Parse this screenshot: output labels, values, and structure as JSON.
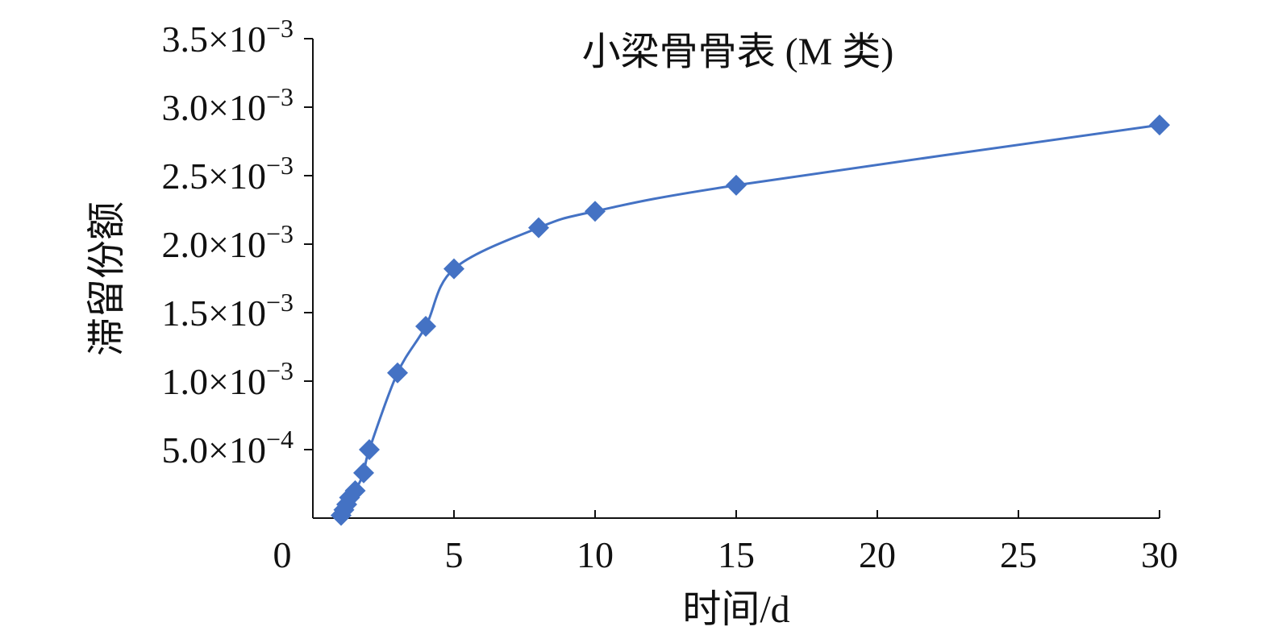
{
  "chart_data": {
    "type": "scatter",
    "title": "小梁骨骨表 (M 类)",
    "xlabel": "时间/d",
    "ylabel": "滞留份额",
    "xlim": [
      0,
      30
    ],
    "ylim": [
      0,
      0.0035
    ],
    "x_ticks": [
      {
        "value": 0,
        "label": "0"
      },
      {
        "value": 5,
        "label": "5"
      },
      {
        "value": 10,
        "label": "10"
      },
      {
        "value": 15,
        "label": "15"
      },
      {
        "value": 20,
        "label": "20"
      },
      {
        "value": 25,
        "label": "25"
      },
      {
        "value": 30,
        "label": "30"
      }
    ],
    "y_ticks": [
      {
        "value": 0.0005,
        "mantissa": "5.0",
        "exponent": "−4"
      },
      {
        "value": 0.001,
        "mantissa": "1.0",
        "exponent": "−3"
      },
      {
        "value": 0.0015,
        "mantissa": "1.5",
        "exponent": "−3"
      },
      {
        "value": 0.002,
        "mantissa": "2.0",
        "exponent": "−3"
      },
      {
        "value": 0.0025,
        "mantissa": "2.5",
        "exponent": "−3"
      },
      {
        "value": 0.003,
        "mantissa": "3.0",
        "exponent": "−3"
      },
      {
        "value": 0.0035,
        "mantissa": "3.5",
        "exponent": "−3"
      }
    ],
    "times_symbol": "×10",
    "grid": false,
    "legend": "none",
    "series": [
      {
        "marker": "diamond",
        "color": "#4472C4",
        "line": "smooth",
        "x": [
          1,
          1.1,
          1.2,
          1.3,
          1.5,
          1.8,
          2,
          3,
          4,
          5,
          8,
          10,
          15,
          30
        ],
        "y": [
          2e-05,
          6e-05,
          0.0001,
          0.00015,
          0.0002,
          0.00033,
          0.0005,
          0.00106,
          0.0014,
          0.00182,
          0.00212,
          0.00224,
          0.00243,
          0.00287
        ]
      }
    ]
  }
}
